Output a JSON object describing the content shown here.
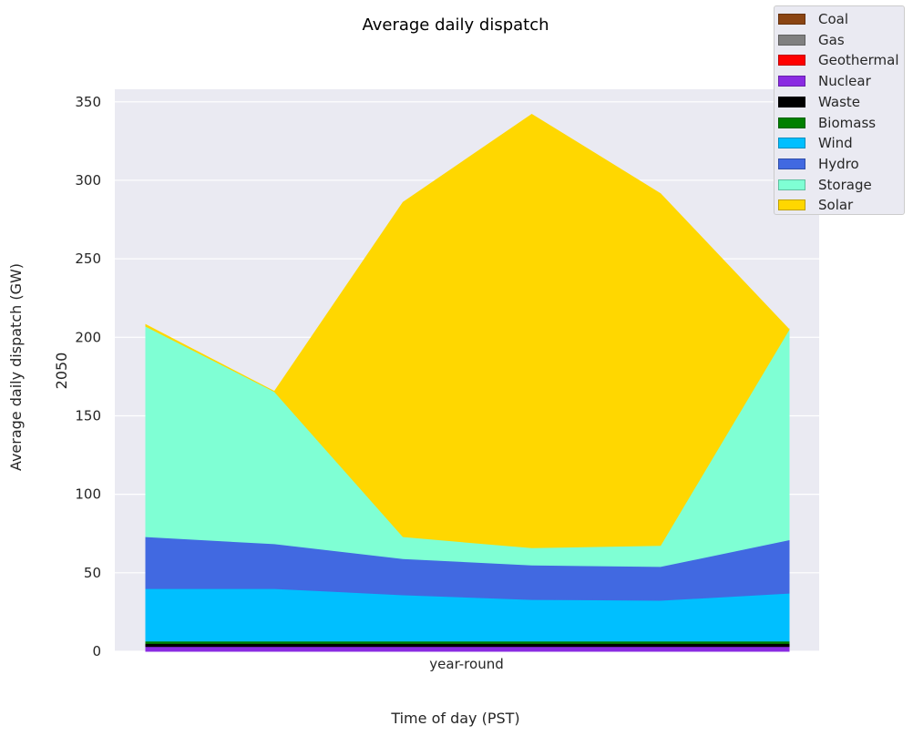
{
  "chart_data": {
    "type": "area",
    "title": "Average daily dispatch",
    "xlabel": "Time of day (PST)",
    "ylabel": "Average daily dispatch (GW)",
    "panel_label": "2050",
    "x_tick_label": "year-round",
    "x": [
      0,
      1,
      2,
      3,
      4,
      5
    ],
    "ylim": [
      0,
      358
    ],
    "yticks": [
      0,
      50,
      100,
      150,
      200,
      250,
      300,
      350
    ],
    "grid": true,
    "legend_position": "top-right",
    "series": [
      {
        "name": "Coal",
        "color": "#8B4513",
        "values": [
          0,
          0,
          0,
          0,
          0,
          0
        ]
      },
      {
        "name": "Gas",
        "color": "#808080",
        "values": [
          0,
          0,
          0,
          0,
          0,
          0
        ]
      },
      {
        "name": "Geothermal",
        "color": "#FF0000",
        "values": [
          0,
          0,
          0,
          0,
          0,
          0
        ]
      },
      {
        "name": "Nuclear",
        "color": "#8A2BE2",
        "values": [
          3,
          3,
          3,
          3,
          3,
          3
        ]
      },
      {
        "name": "Waste",
        "color": "#000000",
        "values": [
          2,
          2,
          2,
          2,
          2,
          2
        ]
      },
      {
        "name": "Biomass",
        "color": "#008000",
        "values": [
          1.5,
          1.5,
          1.5,
          1.5,
          1.5,
          1.5
        ]
      },
      {
        "name": "Wind",
        "color": "#00BFFF",
        "values": [
          33.5,
          33.5,
          29.5,
          26.5,
          26,
          30.5
        ]
      },
      {
        "name": "Hydro",
        "color": "#4169E1",
        "values": [
          33,
          28.5,
          23,
          22,
          21.5,
          34
        ]
      },
      {
        "name": "Storage",
        "color": "#7FFFD4",
        "values": [
          134,
          97,
          14,
          11,
          13.5,
          134
        ]
      },
      {
        "name": "Solar",
        "color": "#FFD700",
        "values": [
          1,
          0,
          213,
          276,
          224,
          0
        ]
      }
    ]
  },
  "colors": {
    "background": "#ffffff",
    "panel": "#eaeaf2",
    "grid": "#ffffff"
  }
}
